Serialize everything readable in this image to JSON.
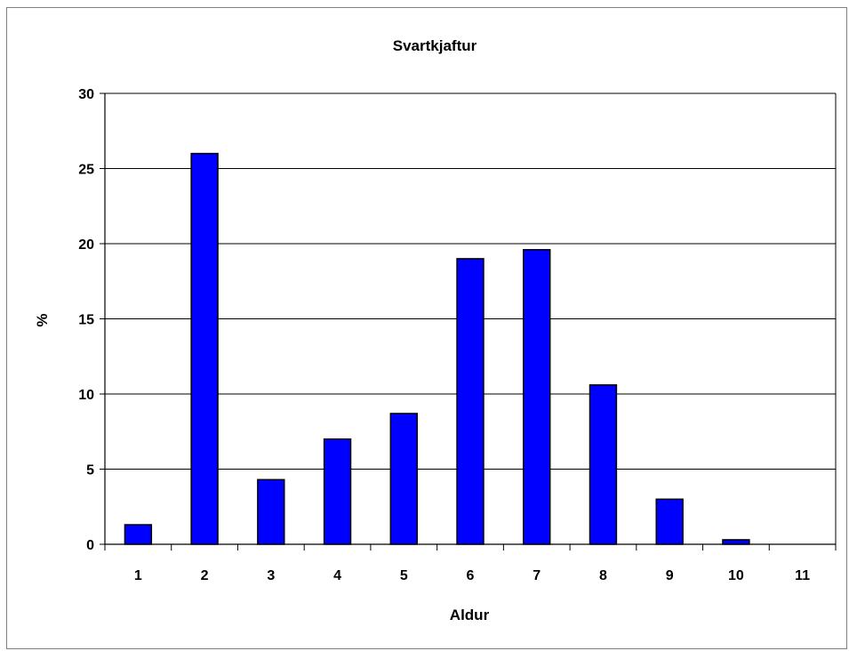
{
  "chart_data": {
    "type": "bar",
    "title": "Svartkjaftur",
    "xlabel": "Aldur",
    "ylabel": "%",
    "categories": [
      "1",
      "2",
      "3",
      "4",
      "5",
      "6",
      "7",
      "8",
      "9",
      "10",
      "11"
    ],
    "values": [
      1.3,
      26.0,
      4.3,
      7.0,
      8.7,
      19.0,
      19.6,
      10.6,
      3.0,
      0.3,
      0
    ],
    "ylim": [
      0,
      30
    ],
    "yticks": [
      "0",
      "5",
      "10",
      "15",
      "20",
      "25",
      "30"
    ],
    "grid": true,
    "legend": "none",
    "bar_color": "#0000ff",
    "bar_edge_color": "#000000"
  }
}
